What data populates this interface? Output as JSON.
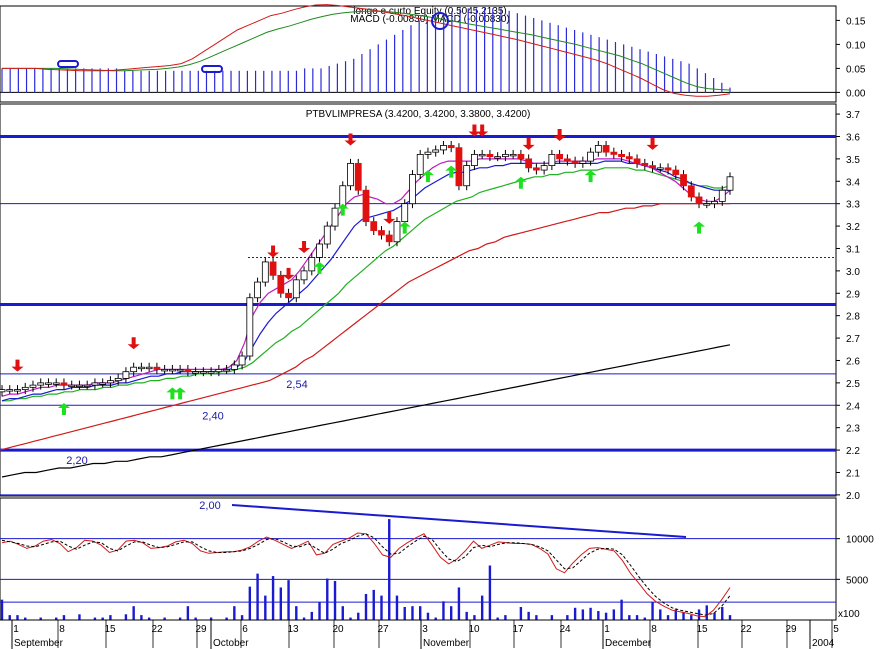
{
  "chart_data": [
    {
      "type": "bar",
      "panel": "macd",
      "title_line1": "longo e curto Equity (0.5045,2135)",
      "title_line2": "MACD (-0.00830) MACD (-0.00830)",
      "yticks": [
        "0.15",
        "0.10",
        "0.05",
        "0.00"
      ],
      "ylim": [
        -0.02,
        0.18
      ],
      "histogram": [
        0.05,
        0.05,
        0.05,
        0.05,
        0.05,
        0.05,
        0.05,
        0.05,
        0.05,
        0.05,
        0.05,
        0.05,
        0.05,
        0.05,
        0.05,
        0.045,
        0.045,
        0.045,
        0.045,
        0.045,
        0.045,
        0.045,
        0.045,
        0.045,
        0.045,
        0.045,
        0.045,
        0.045,
        0.045,
        0.045,
        0.045,
        0.045,
        0.045,
        0.045,
        0.045,
        0.045,
        0.045,
        0.05,
        0.05,
        0.05,
        0.055,
        0.06,
        0.065,
        0.07,
        0.08,
        0.09,
        0.1,
        0.11,
        0.12,
        0.13,
        0.14,
        0.15,
        0.155,
        0.16,
        0.165,
        0.17,
        0.175,
        0.175,
        0.175,
        0.175,
        0.175,
        0.175,
        0.17,
        0.165,
        0.16,
        0.155,
        0.15,
        0.145,
        0.14,
        0.135,
        0.13,
        0.125,
        0.12,
        0.115,
        0.11,
        0.105,
        0.1,
        0.095,
        0.09,
        0.085,
        0.08,
        0.075,
        0.07,
        0.065,
        0.06,
        0.05,
        0.04,
        0.03,
        0.02,
        0.01
      ],
      "signal_green": [
        0.05,
        0.05,
        0.05,
        0.05,
        0.05,
        0.05,
        0.049,
        0.048,
        0.047,
        0.046,
        0.045,
        0.045,
        0.046,
        0.047,
        0.048,
        0.05,
        0.053,
        0.058,
        0.065,
        0.075,
        0.085,
        0.095,
        0.105,
        0.115,
        0.125,
        0.132,
        0.138,
        0.145,
        0.152,
        0.158,
        0.163,
        0.166,
        0.168,
        0.169,
        0.169,
        0.168,
        0.166,
        0.163,
        0.16,
        0.156,
        0.152,
        0.148,
        0.144,
        0.14,
        0.136,
        0.132,
        0.128,
        0.124,
        0.12,
        0.115,
        0.11,
        0.105,
        0.1,
        0.094,
        0.088,
        0.082,
        0.076,
        0.068,
        0.06,
        0.05,
        0.04,
        0.03,
        0.02,
        0.012,
        0.008,
        0.006,
        0.005
      ],
      "macd_red": [
        0.05,
        0.05,
        0.05,
        0.05,
        0.048,
        0.047,
        0.046,
        0.045,
        0.045,
        0.045,
        0.046,
        0.048,
        0.05,
        0.052,
        0.054,
        0.056,
        0.06,
        0.07,
        0.085,
        0.1,
        0.115,
        0.13,
        0.14,
        0.15,
        0.16,
        0.165,
        0.172,
        0.178,
        0.182,
        0.183,
        0.181,
        0.178,
        0.175,
        0.172,
        0.168,
        0.164,
        0.16,
        0.155,
        0.15,
        0.145,
        0.14,
        0.135,
        0.13,
        0.125,
        0.12,
        0.115,
        0.11,
        0.104,
        0.098,
        0.092,
        0.086,
        0.08,
        0.074,
        0.068,
        0.06,
        0.05,
        0.04,
        0.03,
        0.018,
        0.006,
        -0.002,
        -0.006,
        -0.008,
        -0.008,
        -0.006,
        -0.003
      ]
    },
    {
      "type": "line",
      "panel": "price",
      "title": "PTBVLIMPRESA (3.4200, 3.4200, 3.3800, 3.4200)",
      "yticks": [
        "3.7",
        "3.6",
        "3.5",
        "3.4",
        "3.3",
        "3.2",
        "3.1",
        "3.0",
        "2.9",
        "2.8",
        "2.7",
        "2.6",
        "2.5",
        "2.4",
        "2.3",
        "2.2",
        "2.1",
        "2.0"
      ],
      "ylim": [
        1.995,
        3.745
      ],
      "levels": [
        {
          "value": 3.6,
          "kind": "major"
        },
        {
          "value": 3.3,
          "kind": "minor"
        },
        {
          "value": 3.06,
          "kind": "dotted"
        },
        {
          "value": 2.85,
          "kind": "major"
        },
        {
          "value": 2.54,
          "kind": "minor",
          "label": "2,54"
        },
        {
          "value": 2.4,
          "kind": "minor",
          "label": "2,40"
        },
        {
          "value": 2.2,
          "kind": "major",
          "label": "2,20"
        },
        {
          "value": 2.0,
          "kind": "minor",
          "label": "2,00"
        }
      ],
      "close": [
        2.47,
        2.47,
        2.47,
        2.48,
        2.49,
        2.5,
        2.5,
        2.5,
        2.49,
        2.49,
        2.49,
        2.49,
        2.5,
        2.5,
        2.51,
        2.52,
        2.55,
        2.57,
        2.57,
        2.57,
        2.56,
        2.56,
        2.56,
        2.56,
        2.55,
        2.55,
        2.55,
        2.55,
        2.56,
        2.56,
        2.58,
        2.62,
        2.88,
        2.95,
        3.04,
        2.98,
        2.9,
        2.88,
        2.96,
        3.0,
        3.06,
        3.12,
        3.2,
        3.28,
        3.38,
        3.48,
        3.36,
        3.22,
        3.18,
        3.16,
        3.13,
        3.22,
        3.3,
        3.43,
        3.52,
        3.53,
        3.54,
        3.56,
        3.55,
        3.38,
        3.47,
        3.52,
        3.52,
        3.51,
        3.51,
        3.52,
        3.52,
        3.5,
        3.46,
        3.45,
        3.47,
        3.52,
        3.5,
        3.49,
        3.48,
        3.49,
        3.53,
        3.56,
        3.53,
        3.52,
        3.51,
        3.5,
        3.48,
        3.47,
        3.46,
        3.46,
        3.45,
        3.43,
        3.38,
        3.33,
        3.3,
        3.3,
        3.31,
        3.36,
        3.42
      ],
      "ma_short": [
        2.44,
        2.45,
        2.45,
        2.46,
        2.47,
        2.48,
        2.48,
        2.49,
        2.49,
        2.49,
        2.49,
        2.49,
        2.5,
        2.5,
        2.5,
        2.51,
        2.52,
        2.53,
        2.54,
        2.55,
        2.56,
        2.56,
        2.56,
        2.56,
        2.56,
        2.56,
        2.56,
        2.56,
        2.56,
        2.57,
        2.6,
        2.68,
        2.8,
        2.86,
        2.9,
        2.92,
        2.94,
        2.96,
        3.0,
        3.05,
        3.1,
        3.15,
        3.2,
        3.25,
        3.3,
        3.33,
        3.34,
        3.33,
        3.32,
        3.3,
        3.3,
        3.32,
        3.36,
        3.4,
        3.43,
        3.46,
        3.48,
        3.49,
        3.49,
        3.49,
        3.49,
        3.5,
        3.5,
        3.5,
        3.5,
        3.5,
        3.5,
        3.49,
        3.48,
        3.48,
        3.48,
        3.49,
        3.49,
        3.49,
        3.49,
        3.49,
        3.5,
        3.5,
        3.5,
        3.5,
        3.49,
        3.48,
        3.47,
        3.46,
        3.44,
        3.42,
        3.4,
        3.37,
        3.34,
        3.32,
        3.31,
        3.31,
        3.33,
        3.36
      ],
      "ma_mid": [
        2.42,
        2.43,
        2.43,
        2.44,
        2.45,
        2.45,
        2.46,
        2.47,
        2.47,
        2.48,
        2.48,
        2.48,
        2.49,
        2.49,
        2.49,
        2.5,
        2.5,
        2.51,
        2.52,
        2.53,
        2.53,
        2.54,
        2.54,
        2.55,
        2.55,
        2.55,
        2.55,
        2.55,
        2.56,
        2.56,
        2.57,
        2.6,
        2.66,
        2.72,
        2.77,
        2.81,
        2.84,
        2.87,
        2.9,
        2.93,
        2.97,
        3.01,
        3.05,
        3.1,
        3.15,
        3.2,
        3.23,
        3.24,
        3.25,
        3.26,
        3.27,
        3.29,
        3.31,
        3.34,
        3.37,
        3.39,
        3.41,
        3.43,
        3.44,
        3.44,
        3.45,
        3.46,
        3.46,
        3.47,
        3.47,
        3.48,
        3.48,
        3.48,
        3.48,
        3.48,
        3.48,
        3.48,
        3.48,
        3.48,
        3.48,
        3.48,
        3.48,
        3.49,
        3.49,
        3.49,
        3.48,
        3.48,
        3.47,
        3.46,
        3.45,
        3.44,
        3.42,
        3.41,
        3.39,
        3.38,
        3.37,
        3.36,
        3.36,
        3.36
      ],
      "ma_long_green": [
        2.42,
        2.42,
        2.43,
        2.43,
        2.44,
        2.44,
        2.45,
        2.45,
        2.46,
        2.46,
        2.47,
        2.47,
        2.47,
        2.48,
        2.48,
        2.49,
        2.49,
        2.5,
        2.5,
        2.51,
        2.51,
        2.52,
        2.52,
        2.53,
        2.53,
        2.54,
        2.54,
        2.54,
        2.55,
        2.55,
        2.56,
        2.57,
        2.59,
        2.62,
        2.65,
        2.68,
        2.7,
        2.73,
        2.75,
        2.78,
        2.81,
        2.84,
        2.87,
        2.9,
        2.94,
        2.97,
        3.0,
        3.03,
        3.06,
        3.09,
        3.11,
        3.14,
        3.17,
        3.2,
        3.23,
        3.25,
        3.27,
        3.29,
        3.31,
        3.32,
        3.33,
        3.35,
        3.36,
        3.37,
        3.38,
        3.39,
        3.4,
        3.41,
        3.42,
        3.42,
        3.43,
        3.43,
        3.44,
        3.44,
        3.45,
        3.45,
        3.45,
        3.46,
        3.46,
        3.46,
        3.46,
        3.45,
        3.45,
        3.44,
        3.43,
        3.42,
        3.41,
        3.4,
        3.39,
        3.38,
        3.38,
        3.37,
        3.37,
        3.38
      ],
      "ma_red": [
        2.2,
        2.21,
        2.22,
        2.23,
        2.24,
        2.25,
        2.26,
        2.27,
        2.28,
        2.29,
        2.3,
        2.31,
        2.32,
        2.33,
        2.34,
        2.35,
        2.36,
        2.37,
        2.38,
        2.39,
        2.4,
        2.41,
        2.42,
        2.43,
        2.44,
        2.45,
        2.46,
        2.47,
        2.48,
        2.49,
        2.5,
        2.51,
        2.53,
        2.55,
        2.57,
        2.6,
        2.62,
        2.65,
        2.68,
        2.71,
        2.74,
        2.77,
        2.8,
        2.83,
        2.86,
        2.89,
        2.92,
        2.95,
        2.97,
        2.99,
        3.01,
        3.03,
        3.05,
        3.07,
        3.09,
        3.1,
        3.12,
        3.13,
        3.15,
        3.16,
        3.17,
        3.18,
        3.19,
        3.2,
        3.21,
        3.22,
        3.23,
        3.24,
        3.25,
        3.26,
        3.26,
        3.27,
        3.28,
        3.28,
        3.29,
        3.29,
        3.3,
        3.3,
        3.3,
        3.3,
        3.3,
        3.3,
        3.3,
        3.3,
        3.3
      ],
      "ma_black": [
        2.08,
        2.09,
        2.1,
        2.1,
        2.11,
        2.12,
        2.12,
        2.13,
        2.14,
        2.14,
        2.15,
        2.15,
        2.16,
        2.17,
        2.17,
        2.18,
        2.19,
        2.2,
        2.21,
        2.22,
        2.23,
        2.24,
        2.25,
        2.26,
        2.27,
        2.28,
        2.29,
        2.3,
        2.31,
        2.32,
        2.33,
        2.34,
        2.35,
        2.36,
        2.37,
        2.38,
        2.39,
        2.4,
        2.41,
        2.42,
        2.43,
        2.44,
        2.45,
        2.46,
        2.47,
        2.48,
        2.49,
        2.5,
        2.51,
        2.52,
        2.53,
        2.54,
        2.55,
        2.56,
        2.57,
        2.58,
        2.59,
        2.6,
        2.61,
        2.62,
        2.63,
        2.64,
        2.65,
        2.66,
        2.67
      ]
    },
    {
      "type": "bar",
      "panel": "volume",
      "yticks": [
        "10000",
        "5000"
      ],
      "ylim": [
        0,
        15000
      ],
      "multiplier": "x100",
      "volume": [
        2500,
        600,
        600,
        300,
        0,
        300,
        0,
        300,
        600,
        0,
        700,
        0,
        300,
        300,
        600,
        0,
        700,
        1700,
        600,
        300,
        0,
        300,
        0,
        300,
        1700,
        300,
        0,
        300,
        0,
        300,
        1700,
        600,
        4100,
        5700,
        3000,
        5400,
        4000,
        4900,
        1700,
        300,
        1000,
        2200,
        5100,
        4800,
        1700,
        300,
        900,
        3200,
        3700,
        3000,
        12400,
        3000,
        1600,
        1700,
        1700,
        900,
        300,
        2300,
        1700,
        4000,
        1000,
        600,
        3000,
        6700,
        300,
        600,
        0,
        1600,
        1000,
        600,
        0,
        600,
        0,
        600,
        1500,
        1300,
        1500,
        1100,
        900,
        1300,
        2500,
        600,
        600,
        300,
        2200,
        1300,
        600,
        1300,
        1000,
        600,
        1300,
        1800,
        900,
        1600,
        600
      ],
      "stoch_red": [
        9500,
        9700,
        9300,
        8800,
        9100,
        9700,
        9900,
        9400,
        8400,
        8900,
        9800,
        9700,
        9200,
        8300,
        8600,
        9700,
        9800,
        9500,
        8800,
        8900,
        9100,
        9600,
        9800,
        9400,
        8500,
        8200,
        8300,
        8400,
        8400,
        8600,
        9000,
        9700,
        10200,
        9800,
        9300,
        8800,
        9200,
        9700,
        8000,
        8200,
        9300,
        9700,
        10100,
        10700,
        10600,
        9400,
        8000,
        7700,
        8800,
        9500,
        10100,
        10600,
        9200,
        7700,
        6900,
        7500,
        8500,
        9700,
        8800,
        9200,
        9600,
        9500,
        9400,
        9400,
        9300,
        8800,
        8100,
        6300,
        5800,
        7000,
        8000,
        8800,
        8900,
        8700,
        8500,
        7300,
        5700,
        4500,
        3200,
        2300,
        1700,
        1200,
        1000,
        800,
        500,
        400,
        1200,
        2500,
        4000
      ],
      "stoch_black": [
        9800,
        9600,
        9400,
        9100,
        9000,
        9300,
        9600,
        9700,
        9100,
        8700,
        9200,
        9600,
        9500,
        8800,
        8500,
        9100,
        9600,
        9600,
        9200,
        8900,
        9000,
        9300,
        9600,
        9600,
        9000,
        8500,
        8300,
        8300,
        8400,
        8500,
        8800,
        9300,
        9900,
        10000,
        9600,
        9100,
        9000,
        9400,
        8800,
        8200,
        8700,
        9400,
        9800,
        10300,
        10600,
        10100,
        9000,
        8100,
        8200,
        9000,
        9700,
        10300,
        9900,
        8600,
        7500,
        7200,
        7800,
        8900,
        9200,
        9000,
        9300,
        9500,
        9500,
        9400,
        9300,
        9000,
        8500,
        7400,
        6300,
        6400,
        7300,
        8200,
        8700,
        8800,
        8700,
        8000,
        6700,
        5300,
        4000,
        2900,
        2100,
        1500,
        1200,
        1000,
        800,
        600,
        800,
        1700,
        3000
      ]
    }
  ],
  "xaxis": {
    "ticks": [
      "1",
      "8",
      "15",
      "22",
      "29",
      "6",
      "13",
      "20",
      "27",
      "3",
      "10",
      "17",
      "24",
      "1",
      "8",
      "15",
      "22",
      "29",
      "5"
    ],
    "months": [
      "September",
      "October",
      "November",
      "December",
      "2004"
    ]
  },
  "arrows": {
    "red_down": 12,
    "green_up": 11
  }
}
